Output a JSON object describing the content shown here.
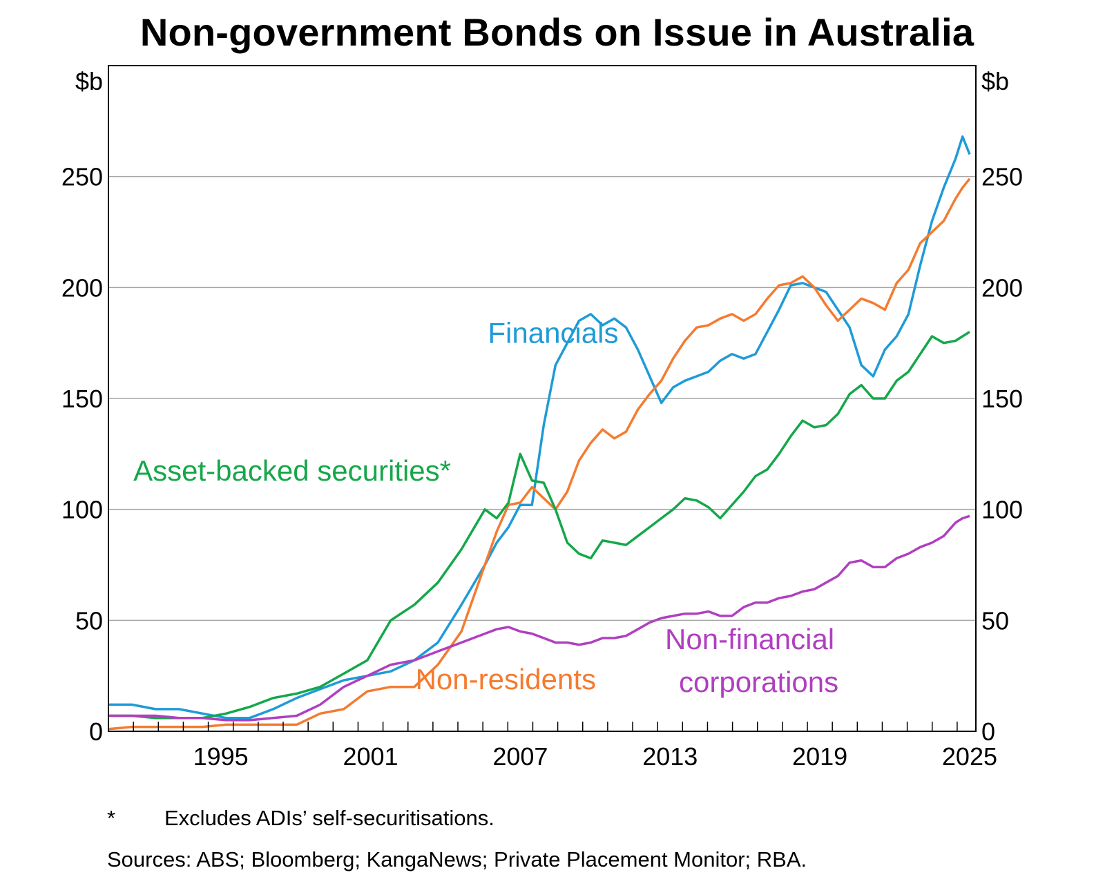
{
  "chart_data": {
    "type": "line",
    "title": "Non-government Bonds on Issue in Australia",
    "ylabel_left": "$b",
    "ylabel_right": "$b",
    "xlim": [
      1991.0,
      2025.75
    ],
    "ylim": [
      0,
      300
    ],
    "y_ticks": [
      0,
      50,
      100,
      150,
      200,
      250
    ],
    "x_tick_labels": [
      1995,
      2001,
      2007,
      2013,
      2019,
      2025
    ],
    "grid": true,
    "series": [
      {
        "name": "Financials",
        "color": "#1E9BD7",
        "label_text": "Financials",
        "points": [
          [
            1991.0,
            12
          ],
          [
            1992.0,
            12
          ],
          [
            1993.0,
            10
          ],
          [
            1994.0,
            10
          ],
          [
            1995.0,
            8
          ],
          [
            1996.0,
            6
          ],
          [
            1997.0,
            6
          ],
          [
            1998.0,
            10
          ],
          [
            1999.0,
            15
          ],
          [
            2000.0,
            19
          ],
          [
            2001.0,
            23
          ],
          [
            2002.0,
            25
          ],
          [
            2003.0,
            27
          ],
          [
            2004.0,
            32
          ],
          [
            2005.0,
            40
          ],
          [
            2006.0,
            57
          ],
          [
            2007.0,
            75
          ],
          [
            2007.5,
            85
          ],
          [
            2008.0,
            92
          ],
          [
            2008.5,
            102
          ],
          [
            2009.0,
            102
          ],
          [
            2009.5,
            138
          ],
          [
            2010.0,
            165
          ],
          [
            2010.5,
            175
          ],
          [
            2011.0,
            185
          ],
          [
            2011.5,
            188
          ],
          [
            2012.0,
            183
          ],
          [
            2012.5,
            186
          ],
          [
            2013.0,
            182
          ],
          [
            2013.5,
            172
          ],
          [
            2014.0,
            160
          ],
          [
            2014.5,
            148
          ],
          [
            2015.0,
            155
          ],
          [
            2015.5,
            158
          ],
          [
            2016.0,
            160
          ],
          [
            2016.5,
            162
          ],
          [
            2017.0,
            167
          ],
          [
            2017.5,
            170
          ],
          [
            2018.0,
            168
          ],
          [
            2018.5,
            170
          ],
          [
            2019.0,
            180
          ],
          [
            2019.5,
            190
          ],
          [
            2020.0,
            201
          ],
          [
            2020.5,
            202
          ],
          [
            2021.0,
            200
          ],
          [
            2021.5,
            198
          ],
          [
            2022.0,
            190
          ],
          [
            2022.5,
            182
          ],
          [
            2023.0,
            165
          ],
          [
            2023.5,
            160
          ],
          [
            2024.0,
            172
          ],
          [
            2024.5,
            178
          ],
          [
            2025.0,
            188
          ],
          [
            2025.5,
            210
          ],
          [
            2026.0,
            230
          ],
          [
            2026.5,
            245
          ],
          [
            2027.0,
            258
          ],
          [
            2027.3,
            268
          ],
          [
            2027.6,
            260
          ]
        ]
      },
      {
        "name": "Non-residents",
        "color": "#F47B30",
        "label_text": "Non-residents",
        "points": [
          [
            1991.0,
            1
          ],
          [
            1992.0,
            2
          ],
          [
            1993.0,
            2
          ],
          [
            1994.0,
            2
          ],
          [
            1995.0,
            2
          ],
          [
            1996.0,
            3
          ],
          [
            1997.0,
            3
          ],
          [
            1998.0,
            3
          ],
          [
            1999.0,
            3
          ],
          [
            2000.0,
            8
          ],
          [
            2001.0,
            10
          ],
          [
            2002.0,
            18
          ],
          [
            2003.0,
            20
          ],
          [
            2004.0,
            20
          ],
          [
            2005.0,
            30
          ],
          [
            2006.0,
            45
          ],
          [
            2007.0,
            75
          ],
          [
            2007.5,
            90
          ],
          [
            2008.0,
            102
          ],
          [
            2008.5,
            103
          ],
          [
            2009.0,
            110
          ],
          [
            2009.5,
            105
          ],
          [
            2010.0,
            100
          ],
          [
            2010.5,
            108
          ],
          [
            2011.0,
            122
          ],
          [
            2011.5,
            130
          ],
          [
            2012.0,
            136
          ],
          [
            2012.5,
            132
          ],
          [
            2013.0,
            135
          ],
          [
            2013.5,
            145
          ],
          [
            2014.0,
            152
          ],
          [
            2014.5,
            158
          ],
          [
            2015.0,
            168
          ],
          [
            2015.5,
            176
          ],
          [
            2016.0,
            182
          ],
          [
            2016.5,
            183
          ],
          [
            2017.0,
            186
          ],
          [
            2017.5,
            188
          ],
          [
            2018.0,
            185
          ],
          [
            2018.5,
            188
          ],
          [
            2019.0,
            195
          ],
          [
            2019.5,
            201
          ],
          [
            2020.0,
            202
          ],
          [
            2020.5,
            205
          ],
          [
            2021.0,
            200
          ],
          [
            2021.5,
            192
          ],
          [
            2022.0,
            185
          ],
          [
            2022.5,
            190
          ],
          [
            2023.0,
            195
          ],
          [
            2023.5,
            193
          ],
          [
            2024.0,
            190
          ],
          [
            2024.5,
            202
          ],
          [
            2025.0,
            208
          ],
          [
            2025.5,
            220
          ],
          [
            2026.0,
            225
          ],
          [
            2026.5,
            230
          ],
          [
            2027.0,
            240
          ],
          [
            2027.3,
            245
          ],
          [
            2027.6,
            249
          ]
        ]
      },
      {
        "name": "Asset-backed securities*",
        "color": "#15A74A",
        "label_text": "Asset-backed securities*",
        "points": [
          [
            1991.0,
            7
          ],
          [
            1992.0,
            7
          ],
          [
            1993.0,
            6
          ],
          [
            1994.0,
            6
          ],
          [
            1995.0,
            6
          ],
          [
            1996.0,
            8
          ],
          [
            1997.0,
            11
          ],
          [
            1998.0,
            15
          ],
          [
            1999.0,
            17
          ],
          [
            2000.0,
            20
          ],
          [
            2001.0,
            26
          ],
          [
            2002.0,
            32
          ],
          [
            2003.0,
            50
          ],
          [
            2004.0,
            57
          ],
          [
            2005.0,
            67
          ],
          [
            2006.0,
            82
          ],
          [
            2007.0,
            100
          ],
          [
            2007.5,
            96
          ],
          [
            2008.0,
            103
          ],
          [
            2008.5,
            125
          ],
          [
            2009.0,
            113
          ],
          [
            2009.5,
            112
          ],
          [
            2010.0,
            100
          ],
          [
            2010.5,
            85
          ],
          [
            2011.0,
            80
          ],
          [
            2011.5,
            78
          ],
          [
            2012.0,
            86
          ],
          [
            2012.5,
            85
          ],
          [
            2013.0,
            84
          ],
          [
            2013.5,
            88
          ],
          [
            2014.0,
            92
          ],
          [
            2014.5,
            96
          ],
          [
            2015.0,
            100
          ],
          [
            2015.5,
            105
          ],
          [
            2016.0,
            104
          ],
          [
            2016.5,
            101
          ],
          [
            2017.0,
            96
          ],
          [
            2017.5,
            102
          ],
          [
            2018.0,
            108
          ],
          [
            2018.5,
            115
          ],
          [
            2019.0,
            118
          ],
          [
            2019.5,
            125
          ],
          [
            2020.0,
            133
          ],
          [
            2020.5,
            140
          ],
          [
            2021.0,
            137
          ],
          [
            2021.5,
            138
          ],
          [
            2022.0,
            143
          ],
          [
            2022.5,
            152
          ],
          [
            2023.0,
            156
          ],
          [
            2023.5,
            150
          ],
          [
            2024.0,
            150
          ],
          [
            2024.5,
            158
          ],
          [
            2025.0,
            162
          ],
          [
            2025.5,
            170
          ],
          [
            2026.0,
            178
          ],
          [
            2026.5,
            175
          ],
          [
            2027.0,
            176
          ],
          [
            2027.3,
            178
          ],
          [
            2027.6,
            180
          ]
        ]
      },
      {
        "name": "Non-financial corporations",
        "color": "#B03FC0",
        "label_text": [
          "Non-financial",
          "corporations"
        ],
        "points": [
          [
            1991.0,
            7
          ],
          [
            1992.0,
            7
          ],
          [
            1993.0,
            7
          ],
          [
            1994.0,
            6
          ],
          [
            1995.0,
            6
          ],
          [
            1996.0,
            5
          ],
          [
            1997.0,
            5
          ],
          [
            1998.0,
            6
          ],
          [
            1999.0,
            7
          ],
          [
            2000.0,
            12
          ],
          [
            2001.0,
            20
          ],
          [
            2002.0,
            25
          ],
          [
            2003.0,
            30
          ],
          [
            2004.0,
            32
          ],
          [
            2005.0,
            36
          ],
          [
            2006.0,
            40
          ],
          [
            2007.0,
            44
          ],
          [
            2007.5,
            46
          ],
          [
            2008.0,
            47
          ],
          [
            2008.5,
            45
          ],
          [
            2009.0,
            44
          ],
          [
            2009.5,
            42
          ],
          [
            2010.0,
            40
          ],
          [
            2010.5,
            40
          ],
          [
            2011.0,
            39
          ],
          [
            2011.5,
            40
          ],
          [
            2012.0,
            42
          ],
          [
            2012.5,
            42
          ],
          [
            2013.0,
            43
          ],
          [
            2013.5,
            46
          ],
          [
            2014.0,
            49
          ],
          [
            2014.5,
            51
          ],
          [
            2015.0,
            52
          ],
          [
            2015.5,
            53
          ],
          [
            2016.0,
            53
          ],
          [
            2016.5,
            54
          ],
          [
            2017.0,
            52
          ],
          [
            2017.5,
            52
          ],
          [
            2018.0,
            56
          ],
          [
            2018.5,
            58
          ],
          [
            2019.0,
            58
          ],
          [
            2019.5,
            60
          ],
          [
            2020.0,
            61
          ],
          [
            2020.5,
            63
          ],
          [
            2021.0,
            64
          ],
          [
            2021.5,
            67
          ],
          [
            2022.0,
            70
          ],
          [
            2022.5,
            76
          ],
          [
            2023.0,
            77
          ],
          [
            2023.5,
            74
          ],
          [
            2024.0,
            74
          ],
          [
            2024.5,
            78
          ],
          [
            2025.0,
            80
          ],
          [
            2025.5,
            83
          ],
          [
            2026.0,
            85
          ],
          [
            2026.5,
            88
          ],
          [
            2027.0,
            94
          ],
          [
            2027.3,
            96
          ],
          [
            2027.6,
            97
          ]
        ]
      }
    ]
  },
  "footnote": {
    "marker": "*",
    "text": "Excludes ADIs’ self-securitisations."
  },
  "sources": "Sources: ABS; Bloomberg; KangaNews; Private Placement Monitor; RBA."
}
